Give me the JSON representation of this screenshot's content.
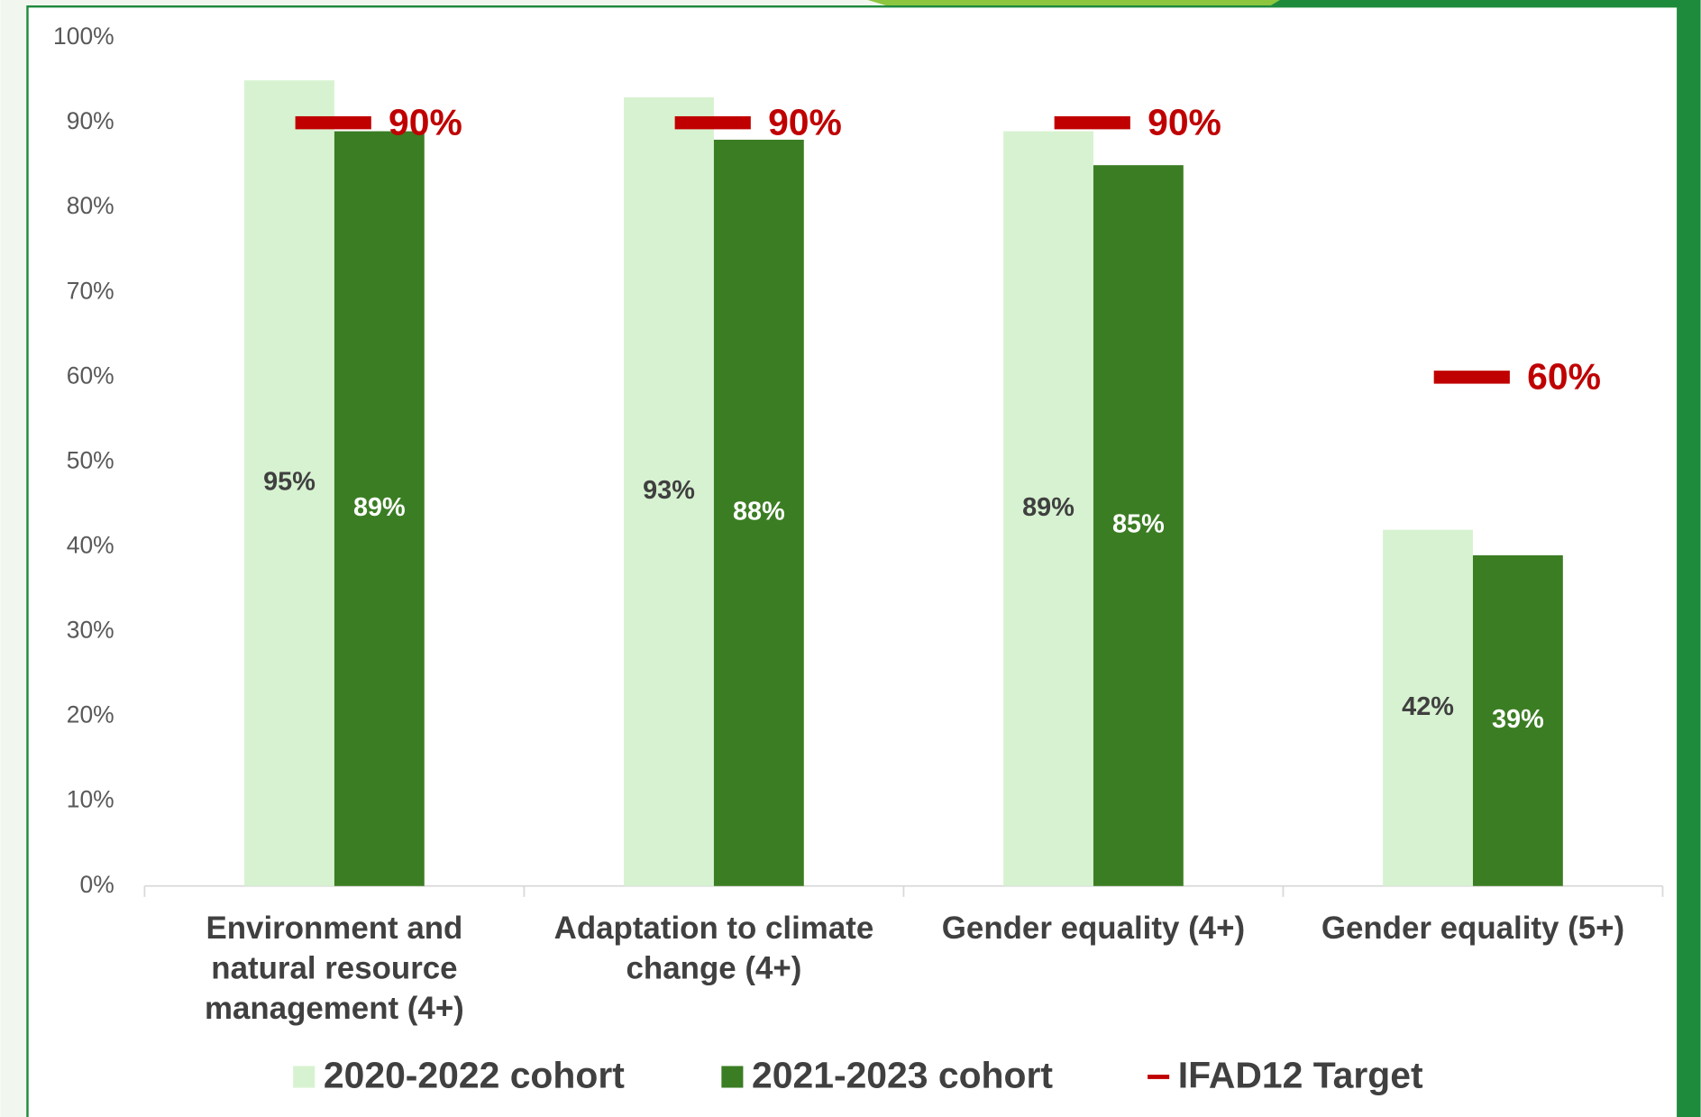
{
  "chart_data": {
    "type": "bar",
    "categories": [
      "Environment and natural resource management (4+)",
      "Adaptation to climate change (4+)",
      "Gender equality (4+)",
      "Gender equality (5+)"
    ],
    "series": [
      {
        "name": "2020-2022 cohort",
        "color": "#d7f2d0",
        "values": [
          95,
          93,
          89,
          42
        ],
        "value_labels": [
          "95%",
          "93%",
          "89%",
          "42%"
        ],
        "label_color": "#404040"
      },
      {
        "name": "2021-2023 cohort",
        "color": "#3b7d23",
        "values": [
          89,
          88,
          85,
          39
        ],
        "value_labels": [
          "89%",
          "88%",
          "85%",
          "39%"
        ],
        "label_color": "#ffffff"
      },
      {
        "name": "IFAD12 Target",
        "color": "#c00000",
        "type": "marker",
        "values": [
          90,
          90,
          90,
          60
        ],
        "value_labels": [
          "90%",
          "90%",
          "90%",
          "60%"
        ]
      }
    ],
    "ylim": [
      0,
      100
    ],
    "yticks": [
      {
        "value": 0,
        "label": "0%"
      },
      {
        "value": 10,
        "label": "10%"
      },
      {
        "value": 20,
        "label": "20%"
      },
      {
        "value": 30,
        "label": "30%"
      },
      {
        "value": 40,
        "label": "40%"
      },
      {
        "value": 50,
        "label": "50%"
      },
      {
        "value": 60,
        "label": "60%"
      },
      {
        "value": 70,
        "label": "70%"
      },
      {
        "value": 80,
        "label": "80%"
      },
      {
        "value": 90,
        "label": "90%"
      },
      {
        "value": 100,
        "label": "100%"
      }
    ],
    "grid": false,
    "legend": "bottom"
  }
}
